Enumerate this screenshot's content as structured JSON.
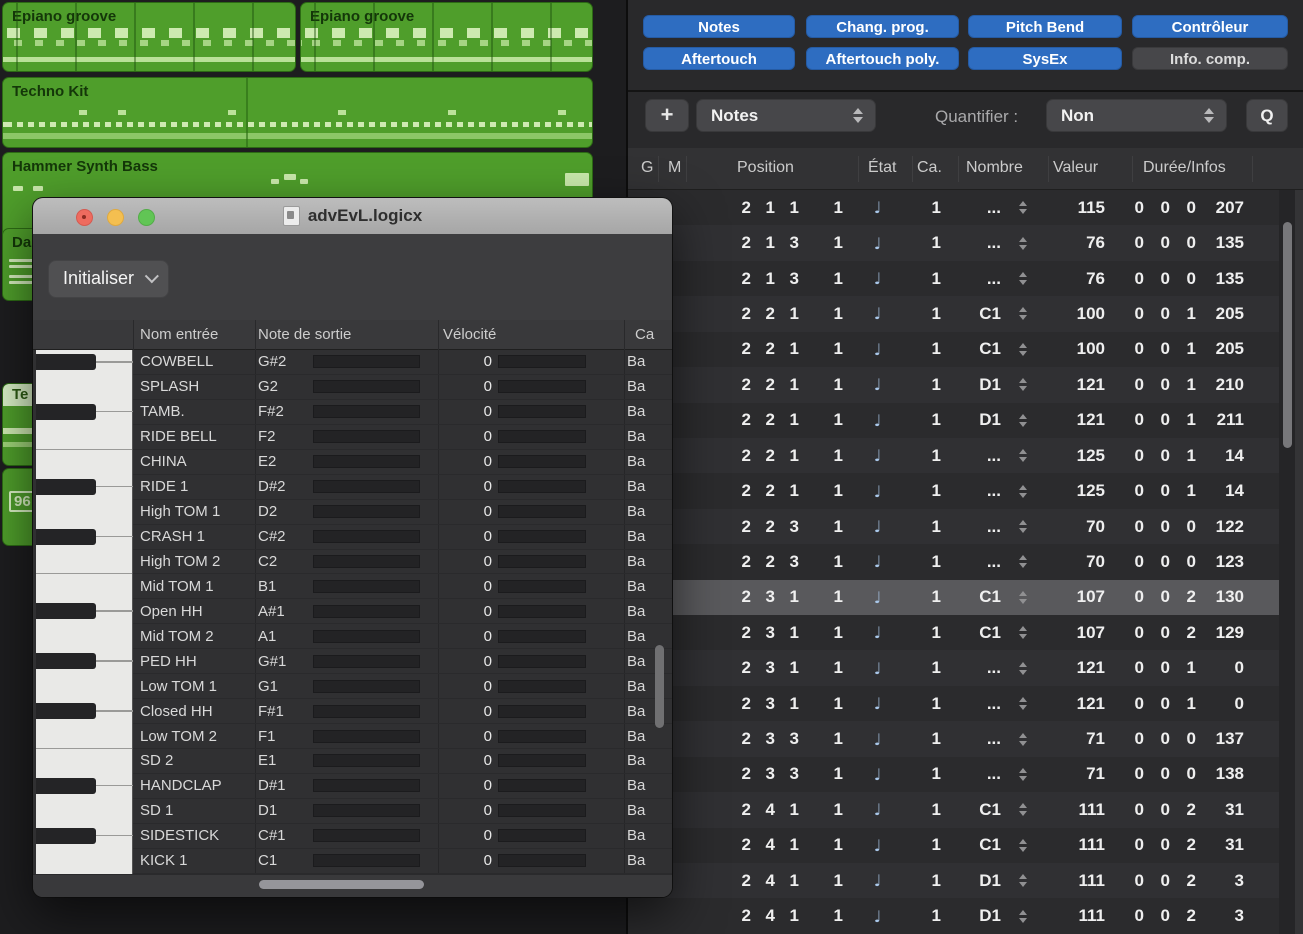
{
  "arrange": {
    "regions": [
      {
        "label": "Epiano groove"
      },
      {
        "label": "Epiano groove"
      },
      {
        "label": "Techno Kit"
      },
      {
        "label": "Hammer Synth Bass"
      },
      {
        "label": "Da"
      },
      {
        "label": "Te"
      },
      {
        "label": "96"
      }
    ]
  },
  "window": {
    "title": "advEvL.logicx",
    "init_button": "Initialiser",
    "columns": {
      "input": "Nom entrée",
      "output": "Note de sortie",
      "velocity": "Vélocité",
      "channel": "Ca"
    },
    "vel_value": "0",
    "vel_pct": 62,
    "rows": [
      {
        "name": "COWBELL",
        "note": "G#2",
        "vel": "0",
        "ch": "Ba",
        "sharp": true,
        "pct": 44
      },
      {
        "name": "SPLASH",
        "note": "G2",
        "vel": "0",
        "ch": "Ba",
        "sharp": false,
        "pct": 43
      },
      {
        "name": "TAMB.",
        "note": "F#2",
        "vel": "0",
        "ch": "Ba",
        "sharp": true,
        "pct": 43
      },
      {
        "name": "RIDE BELL",
        "note": "F2",
        "vel": "0",
        "ch": "Ba",
        "sharp": false,
        "pct": 42,
        "boundary": true
      },
      {
        "name": "CHINA",
        "note": "E2",
        "vel": "0",
        "ch": "Ba",
        "sharp": false,
        "pct": 41
      },
      {
        "name": "RIDE 1",
        "note": "D#2",
        "vel": "0",
        "ch": "Ba",
        "sharp": true,
        "pct": 40
      },
      {
        "name": "High TOM 1",
        "note": "D2",
        "vel": "0",
        "ch": "Ba",
        "sharp": false,
        "pct": 39
      },
      {
        "name": "CRASH 1",
        "note": "C#2",
        "vel": "0",
        "ch": "Ba",
        "sharp": true,
        "pct": 39
      },
      {
        "name": "High TOM 2",
        "note": "C2",
        "vel": "0",
        "ch": "Ba",
        "sharp": false,
        "pct": 38,
        "boundary": true
      },
      {
        "name": "Mid TOM 1",
        "note": "B1",
        "vel": "0",
        "ch": "Ba",
        "sharp": false,
        "pct": 37
      },
      {
        "name": "Open HH",
        "note": "A#1",
        "vel": "0",
        "ch": "Ba",
        "sharp": true,
        "pct": 36
      },
      {
        "name": "Mid TOM 2",
        "note": "A1",
        "vel": "0",
        "ch": "Ba",
        "sharp": false,
        "pct": 35
      },
      {
        "name": "PED HH",
        "note": "G#1",
        "vel": "0",
        "ch": "Ba",
        "sharp": true,
        "pct": 35
      },
      {
        "name": "Low TOM 1",
        "note": "G1",
        "vel": "0",
        "ch": "Ba",
        "sharp": false,
        "pct": 34
      },
      {
        "name": "Closed HH",
        "note": "F#1",
        "vel": "0",
        "ch": "Ba",
        "sharp": true,
        "pct": 33
      },
      {
        "name": "Low TOM 2",
        "note": "F1",
        "vel": "0",
        "ch": "Ba",
        "sharp": false,
        "pct": 32,
        "boundary": true
      },
      {
        "name": "SD 2",
        "note": "E1",
        "vel": "0",
        "ch": "Ba",
        "sharp": false,
        "pct": 31
      },
      {
        "name": "HANDCLAP",
        "note": "D#1",
        "vel": "0",
        "ch": "Ba",
        "sharp": true,
        "pct": 31
      },
      {
        "name": "SD 1",
        "note": "D1",
        "vel": "0",
        "ch": "Ba",
        "sharp": false,
        "pct": 30
      },
      {
        "name": "SIDESTICK",
        "note": "C#1",
        "vel": "0",
        "ch": "Ba",
        "sharp": true,
        "pct": 29
      },
      {
        "name": "KICK 1",
        "note": "C1",
        "vel": "0",
        "ch": "Ba",
        "sharp": false,
        "pct": 28
      }
    ]
  },
  "event_list": {
    "filters": [
      {
        "label": "Notes",
        "active": true
      },
      {
        "label": "Chang. prog.",
        "active": true
      },
      {
        "label": "Pitch Bend",
        "active": true
      },
      {
        "label": "Contrôleur",
        "active": true
      },
      {
        "label": "Aftertouch",
        "active": true
      },
      {
        "label": "Aftertouch poly.",
        "active": true
      },
      {
        "label": "SysEx",
        "active": true
      },
      {
        "label": "Info. comp.",
        "active": false
      }
    ],
    "toolbar": {
      "add_button": "+",
      "event_type": "Notes",
      "quantize_label": "Quantifier :",
      "quantize_value": "Non",
      "q_button": "Q"
    },
    "columns": {
      "g": "G",
      "m": "M",
      "position": "Position",
      "etat": "État",
      "ca": "Ca.",
      "nombre": "Nombre",
      "valeur": "Valeur",
      "duree": "Durée/Infos"
    },
    "note_icon": "♩",
    "rows": [
      {
        "pos": [
          "2",
          "1",
          "1"
        ],
        "sub": "1",
        "ca": "1",
        "nombre": "...",
        "valeur": "115",
        "duree": [
          "0",
          "0",
          "0",
          "207"
        ],
        "selected": false
      },
      {
        "pos": [
          "2",
          "1",
          "3"
        ],
        "sub": "1",
        "ca": "1",
        "nombre": "...",
        "valeur": "76",
        "duree": [
          "0",
          "0",
          "0",
          "135"
        ],
        "selected": false
      },
      {
        "pos": [
          "2",
          "1",
          "3"
        ],
        "sub": "1",
        "ca": "1",
        "nombre": "...",
        "valeur": "76",
        "duree": [
          "0",
          "0",
          "0",
          "135"
        ],
        "selected": false
      },
      {
        "pos": [
          "2",
          "2",
          "1"
        ],
        "sub": "1",
        "ca": "1",
        "nombre": "C1",
        "valeur": "100",
        "duree": [
          "0",
          "0",
          "1",
          "205"
        ],
        "selected": false
      },
      {
        "pos": [
          "2",
          "2",
          "1"
        ],
        "sub": "1",
        "ca": "1",
        "nombre": "C1",
        "valeur": "100",
        "duree": [
          "0",
          "0",
          "1",
          "205"
        ],
        "selected": false
      },
      {
        "pos": [
          "2",
          "2",
          "1"
        ],
        "sub": "1",
        "ca": "1",
        "nombre": "D1",
        "valeur": "121",
        "duree": [
          "0",
          "0",
          "1",
          "210"
        ],
        "selected": false
      },
      {
        "pos": [
          "2",
          "2",
          "1"
        ],
        "sub": "1",
        "ca": "1",
        "nombre": "D1",
        "valeur": "121",
        "duree": [
          "0",
          "0",
          "1",
          "211"
        ],
        "selected": false
      },
      {
        "pos": [
          "2",
          "2",
          "1"
        ],
        "sub": "1",
        "ca": "1",
        "nombre": "...",
        "valeur": "125",
        "duree": [
          "0",
          "0",
          "1",
          "14"
        ],
        "selected": false
      },
      {
        "pos": [
          "2",
          "2",
          "1"
        ],
        "sub": "1",
        "ca": "1",
        "nombre": "...",
        "valeur": "125",
        "duree": [
          "0",
          "0",
          "1",
          "14"
        ],
        "selected": false
      },
      {
        "pos": [
          "2",
          "2",
          "3"
        ],
        "sub": "1",
        "ca": "1",
        "nombre": "...",
        "valeur": "70",
        "duree": [
          "0",
          "0",
          "0",
          "122"
        ],
        "selected": false
      },
      {
        "pos": [
          "2",
          "2",
          "3"
        ],
        "sub": "1",
        "ca": "1",
        "nombre": "...",
        "valeur": "70",
        "duree": [
          "0",
          "0",
          "0",
          "123"
        ],
        "selected": false
      },
      {
        "pos": [
          "2",
          "3",
          "1"
        ],
        "sub": "1",
        "ca": "1",
        "nombre": "C1",
        "valeur": "107",
        "duree": [
          "0",
          "0",
          "2",
          "130"
        ],
        "selected": true
      },
      {
        "pos": [
          "2",
          "3",
          "1"
        ],
        "sub": "1",
        "ca": "1",
        "nombre": "C1",
        "valeur": "107",
        "duree": [
          "0",
          "0",
          "2",
          "129"
        ],
        "selected": false
      },
      {
        "pos": [
          "2",
          "3",
          "1"
        ],
        "sub": "1",
        "ca": "1",
        "nombre": "...",
        "valeur": "121",
        "duree": [
          "0",
          "0",
          "1",
          "0"
        ],
        "selected": false
      },
      {
        "pos": [
          "2",
          "3",
          "1"
        ],
        "sub": "1",
        "ca": "1",
        "nombre": "...",
        "valeur": "121",
        "duree": [
          "0",
          "0",
          "1",
          "0"
        ],
        "selected": false
      },
      {
        "pos": [
          "2",
          "3",
          "3"
        ],
        "sub": "1",
        "ca": "1",
        "nombre": "...",
        "valeur": "71",
        "duree": [
          "0",
          "0",
          "0",
          "137"
        ],
        "selected": false
      },
      {
        "pos": [
          "2",
          "3",
          "3"
        ],
        "sub": "1",
        "ca": "1",
        "nombre": "...",
        "valeur": "71",
        "duree": [
          "0",
          "0",
          "0",
          "138"
        ],
        "selected": false
      },
      {
        "pos": [
          "2",
          "4",
          "1"
        ],
        "sub": "1",
        "ca": "1",
        "nombre": "C1",
        "valeur": "111",
        "duree": [
          "0",
          "0",
          "2",
          "31"
        ],
        "selected": false
      },
      {
        "pos": [
          "2",
          "4",
          "1"
        ],
        "sub": "1",
        "ca": "1",
        "nombre": "C1",
        "valeur": "111",
        "duree": [
          "0",
          "0",
          "2",
          "31"
        ],
        "selected": false
      },
      {
        "pos": [
          "2",
          "4",
          "1"
        ],
        "sub": "1",
        "ca": "1",
        "nombre": "D1",
        "valeur": "111",
        "duree": [
          "0",
          "0",
          "2",
          "3"
        ],
        "selected": false
      },
      {
        "pos": [
          "2",
          "4",
          "1"
        ],
        "sub": "1",
        "ca": "1",
        "nombre": "D1",
        "valeur": "111",
        "duree": [
          "0",
          "0",
          "2",
          "3"
        ],
        "selected": false
      }
    ]
  },
  "colors": {
    "region_green": "#4f9e2b",
    "region_note_light": "#cdeab0",
    "accent_blue": "#2e6dc1",
    "slider_blue": "#3f75ae",
    "selection_gray": "#59595c",
    "note_icon_blue": "#a9c7e9"
  }
}
